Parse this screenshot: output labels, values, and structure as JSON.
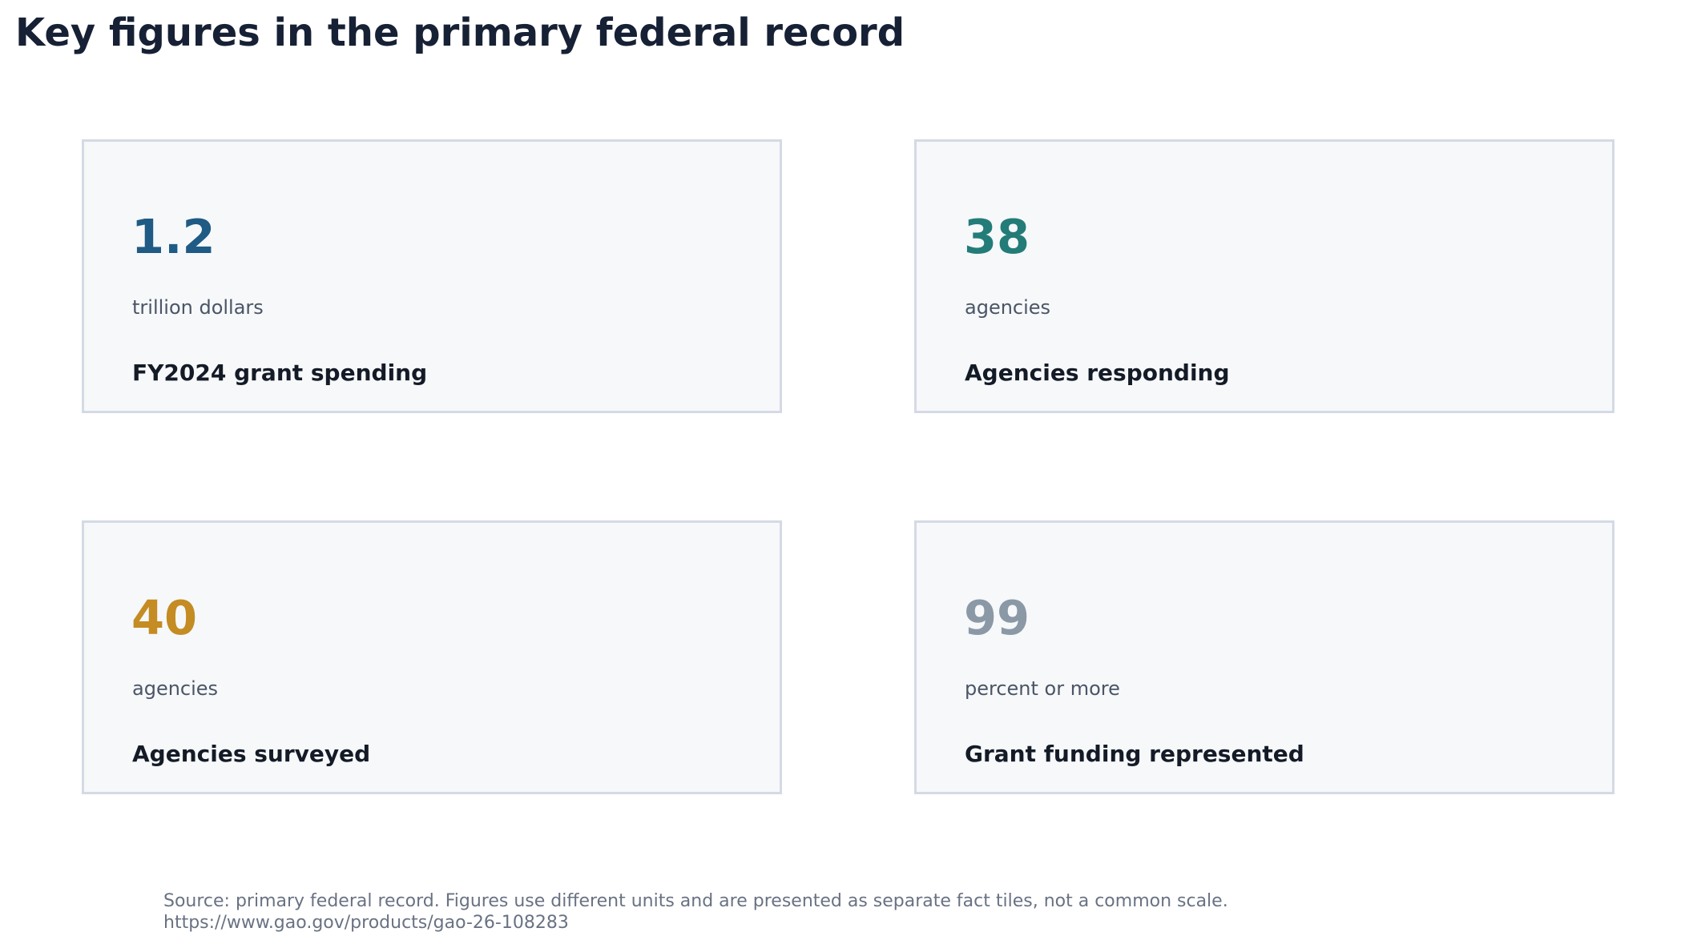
{
  "title": "Key figures in the primary federal record",
  "colors": {
    "tile_1_value": "#1f5b84",
    "tile_2_value": "#237c78",
    "tile_3_value": "#c48c22",
    "tile_4_value": "#8b98a6",
    "tile_background": "#f6f8fa",
    "tile_border": "#d4dae5"
  },
  "chart_data": {
    "type": "table",
    "title": "Key figures in the primary federal record",
    "tiles": [
      {
        "value": "1.2",
        "unit": "trillion dollars",
        "label": "FY2024 grant spending"
      },
      {
        "value": "38",
        "unit": "agencies",
        "label": "Agencies responding"
      },
      {
        "value": "40",
        "unit": "agencies",
        "label": "Agencies surveyed"
      },
      {
        "value": "99",
        "unit": "percent or more",
        "label": "Grant funding represented"
      }
    ]
  },
  "footnote": {
    "line1": "Source: primary federal record. Figures use different units and are presented as separate fact tiles, not a common scale.",
    "line2": "https://www.gao.gov/products/gao-26-108283"
  }
}
